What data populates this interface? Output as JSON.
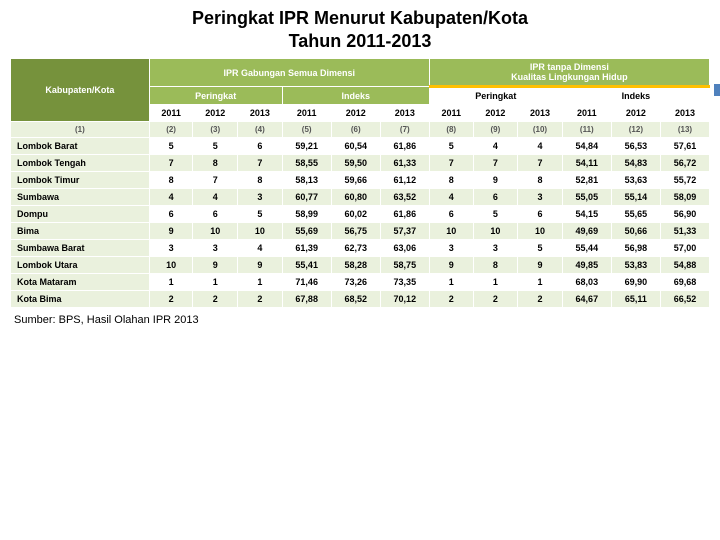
{
  "title_line1": "Peringkat IPR Menurut Kabupaten/Kota",
  "title_line2": "Tahun 2011-2013",
  "header_group_left": "IPR Gabungan Semua Dimensi",
  "header_group_right_l1": "IPR tanpa Dimensi",
  "header_group_right_l2": "Kualitas Lingkungan Hidup",
  "header_kab": "Kabupaten/Kota",
  "header_peringkat": "Peringkat",
  "header_indeks": "Indeks",
  "years": [
    "2011",
    "2012",
    "2013",
    "2011",
    "2012",
    "2013",
    "2011",
    "2012",
    "2013",
    "2011",
    "2012",
    "2013"
  ],
  "colnums": [
    "(1)",
    "(2)",
    "(3)",
    "(4)",
    "(5)",
    "(6)",
    "(7)",
    "(8)",
    "(9)",
    "(10)",
    "(11)",
    "(12)",
    "(13)"
  ],
  "rows": [
    {
      "label": "Lombok Barat",
      "v": [
        "5",
        "5",
        "6",
        "59,21",
        "60,54",
        "61,86",
        "5",
        "4",
        "4",
        "54,84",
        "56,53",
        "57,61"
      ]
    },
    {
      "label": "Lombok Tengah",
      "v": [
        "7",
        "8",
        "7",
        "58,55",
        "59,50",
        "61,33",
        "7",
        "7",
        "7",
        "54,11",
        "54,83",
        "56,72"
      ]
    },
    {
      "label": "Lombok Timur",
      "v": [
        "8",
        "7",
        "8",
        "58,13",
        "59,66",
        "61,12",
        "8",
        "9",
        "8",
        "52,81",
        "53,63",
        "55,72"
      ]
    },
    {
      "label": "Sumbawa",
      "v": [
        "4",
        "4",
        "3",
        "60,77",
        "60,80",
        "63,52",
        "4",
        "6",
        "3",
        "55,05",
        "55,14",
        "58,09"
      ]
    },
    {
      "label": "Dompu",
      "v": [
        "6",
        "6",
        "5",
        "58,99",
        "60,02",
        "61,86",
        "6",
        "5",
        "6",
        "54,15",
        "55,65",
        "56,90"
      ]
    },
    {
      "label": "Bima",
      "v": [
        "9",
        "10",
        "10",
        "55,69",
        "56,75",
        "57,37",
        "10",
        "10",
        "10",
        "49,69",
        "50,66",
        "51,33"
      ]
    },
    {
      "label": "Sumbawa Barat",
      "v": [
        "3",
        "3",
        "4",
        "61,39",
        "62,73",
        "63,06",
        "3",
        "3",
        "5",
        "55,44",
        "56,98",
        "57,00"
      ]
    },
    {
      "label": "Lombok Utara",
      "v": [
        "10",
        "9",
        "9",
        "55,41",
        "58,28",
        "58,75",
        "9",
        "8",
        "9",
        "49,85",
        "53,83",
        "54,88"
      ]
    },
    {
      "label": "Kota Mataram",
      "v": [
        "1",
        "1",
        "1",
        "71,46",
        "73,26",
        "73,35",
        "1",
        "1",
        "1",
        "68,03",
        "69,90",
        "69,68"
      ]
    },
    {
      "label": "Kota Bima",
      "v": [
        "2",
        "2",
        "2",
        "67,88",
        "68,52",
        "70,12",
        "2",
        "2",
        "2",
        "64,67",
        "65,11",
        "66,52"
      ]
    }
  ],
  "source": "Sumber: BPS, Hasil Olahan IPR 2013",
  "colors": {
    "header_dark": "#76923c",
    "header_light": "#9bbb59",
    "accent_underline": "#ffc000",
    "row_alt": "#eaf1dd",
    "side_accent": "#4f81bd"
  }
}
